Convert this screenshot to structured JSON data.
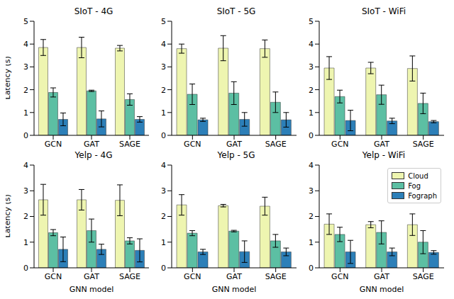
{
  "chart_data": [
    {
      "type": "bar",
      "title": "SIoT - 4G",
      "ylabel": "Latency (s)",
      "categories": [
        "GCN",
        "GAT",
        "SAGE"
      ],
      "ylim": [
        0,
        5
      ],
      "yticks": [
        0,
        1,
        2,
        3,
        4,
        5
      ],
      "grid": false,
      "series": [
        {
          "name": "Cloud",
          "color": "#eef5b0",
          "values": [
            3.85,
            3.85,
            3.82
          ],
          "errors": [
            0.35,
            0.45,
            0.12
          ]
        },
        {
          "name": "Fog",
          "color": "#5cbfa3",
          "values": [
            1.88,
            1.95,
            1.57
          ],
          "errors": [
            0.2,
            0.03,
            0.25
          ]
        },
        {
          "name": "Fograph",
          "color": "#2c7fb8",
          "values": [
            0.7,
            0.72,
            0.7
          ],
          "errors": [
            0.28,
            0.35,
            0.12
          ]
        }
      ]
    },
    {
      "type": "bar",
      "title": "SIoT - 5G",
      "categories": [
        "GCN",
        "GAT",
        "SAGE"
      ],
      "ylim": [
        0,
        5
      ],
      "yticks": [
        0,
        1,
        2,
        3,
        4,
        5
      ],
      "grid": false,
      "series": [
        {
          "name": "Cloud",
          "color": "#eef5b0",
          "values": [
            3.8,
            3.82,
            3.8
          ],
          "errors": [
            0.2,
            0.55,
            0.38
          ]
        },
        {
          "name": "Fog",
          "color": "#5cbfa3",
          "values": [
            1.8,
            1.85,
            1.45
          ],
          "errors": [
            0.45,
            0.5,
            0.45
          ]
        },
        {
          "name": "Fograph",
          "color": "#2c7fb8",
          "values": [
            0.68,
            0.7,
            0.68
          ],
          "errors": [
            0.07,
            0.3,
            0.32
          ]
        }
      ]
    },
    {
      "type": "bar",
      "title": "SIoT - WiFi",
      "categories": [
        "GCN",
        "GAT",
        "SAGE"
      ],
      "ylim": [
        0,
        5
      ],
      "yticks": [
        0,
        1,
        2,
        3,
        4,
        5
      ],
      "grid": false,
      "series": [
        {
          "name": "Cloud",
          "color": "#eef5b0",
          "values": [
            2.95,
            2.95,
            2.93
          ],
          "errors": [
            0.5,
            0.25,
            0.55
          ]
        },
        {
          "name": "Fog",
          "color": "#5cbfa3",
          "values": [
            1.7,
            1.78,
            1.4
          ],
          "errors": [
            0.28,
            0.42,
            0.45
          ]
        },
        {
          "name": "Fograph",
          "color": "#2c7fb8",
          "values": [
            0.65,
            0.63,
            0.6
          ],
          "errors": [
            0.45,
            0.12,
            0.05
          ]
        }
      ]
    },
    {
      "type": "bar",
      "title": "Yelp - 4G",
      "ylabel": "Latency (s)",
      "xlabel": "GNN model",
      "categories": [
        "GCN",
        "GAT",
        "SAGE"
      ],
      "ylim": [
        0,
        4
      ],
      "yticks": [
        0,
        1,
        2,
        3,
        4
      ],
      "grid": false,
      "series": [
        {
          "name": "Cloud",
          "color": "#eef5b0",
          "values": [
            2.65,
            2.65,
            2.63
          ],
          "errors": [
            0.6,
            0.4,
            0.6
          ]
        },
        {
          "name": "Fog",
          "color": "#5cbfa3",
          "values": [
            1.37,
            1.45,
            1.05
          ],
          "errors": [
            0.12,
            0.45,
            0.12
          ]
        },
        {
          "name": "Fograph",
          "color": "#2c7fb8",
          "values": [
            0.72,
            0.72,
            0.68
          ],
          "errors": [
            0.48,
            0.2,
            0.45
          ]
        }
      ]
    },
    {
      "type": "bar",
      "title": "Yelp - 5G",
      "xlabel": "GNN model",
      "categories": [
        "GCN",
        "GAT",
        "SAGE"
      ],
      "ylim": [
        0,
        4
      ],
      "yticks": [
        0,
        1,
        2,
        3,
        4
      ],
      "grid": false,
      "series": [
        {
          "name": "Cloud",
          "color": "#eef5b0",
          "values": [
            2.45,
            2.42,
            2.4
          ],
          "errors": [
            0.4,
            0.05,
            0.35
          ]
        },
        {
          "name": "Fog",
          "color": "#5cbfa3",
          "values": [
            1.35,
            1.43,
            1.05
          ],
          "errors": [
            0.1,
            0.03,
            0.25
          ]
        },
        {
          "name": "Fograph",
          "color": "#2c7fb8",
          "values": [
            0.62,
            0.63,
            0.62
          ],
          "errors": [
            0.1,
            0.42,
            0.15
          ]
        }
      ]
    },
    {
      "type": "bar",
      "title": "Yelp - WiFi",
      "xlabel": "GNN model",
      "categories": [
        "GCN",
        "GAT",
        "SAGE"
      ],
      "ylim": [
        0,
        4
      ],
      "yticks": [
        0,
        1,
        2,
        3,
        4
      ],
      "grid": false,
      "legend": "upper right",
      "series": [
        {
          "name": "Cloud",
          "color": "#eef5b0",
          "values": [
            1.7,
            1.68,
            1.68
          ],
          "errors": [
            0.4,
            0.12,
            0.42
          ]
        },
        {
          "name": "Fog",
          "color": "#5cbfa3",
          "values": [
            1.3,
            1.38,
            1.0
          ],
          "errors": [
            0.28,
            0.45,
            0.45
          ]
        },
        {
          "name": "Fograph",
          "color": "#2c7fb8",
          "values": [
            0.62,
            0.62,
            0.6
          ],
          "errors": [
            0.45,
            0.15,
            0.07
          ]
        }
      ]
    }
  ]
}
